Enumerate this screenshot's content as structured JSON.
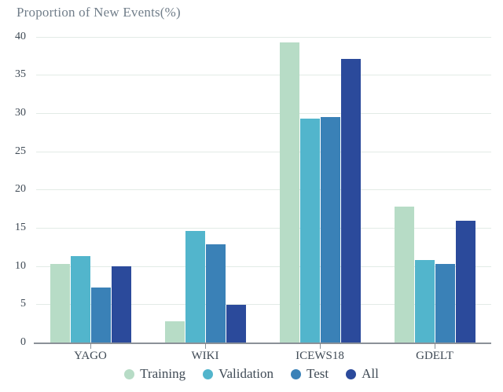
{
  "chart_data": {
    "type": "bar",
    "title": "Proportion of New Events(%)",
    "categories": [
      "YAGO",
      "WIKI",
      "ICEWS18",
      "GDELT"
    ],
    "series": [
      {
        "name": "Training",
        "color": "#b7dcc6",
        "values": [
          10.3,
          2.8,
          39.2,
          17.8
        ]
      },
      {
        "name": "Validation",
        "color": "#52b5cc",
        "values": [
          11.3,
          14.6,
          29.3,
          10.8
        ]
      },
      {
        "name": "Test",
        "color": "#3a81b7",
        "values": [
          7.2,
          12.8,
          29.5,
          10.3
        ]
      },
      {
        "name": "All",
        "color": "#2b4a9b",
        "values": [
          10.0,
          4.9,
          37.1,
          15.9
        ]
      }
    ],
    "xlabel": "",
    "ylabel": "",
    "ylim": [
      0,
      40
    ],
    "yticks": [
      0,
      5,
      10,
      15,
      20,
      25,
      30,
      35,
      40
    ],
    "grid": "horizontal",
    "legend_position": "bottom"
  },
  "colors": {
    "background": "#ffffff",
    "title_text": "#717e8a",
    "axis_text": "#3f4a55",
    "gridline": "#e2ebe6",
    "axis_line": "#8b9198"
  }
}
